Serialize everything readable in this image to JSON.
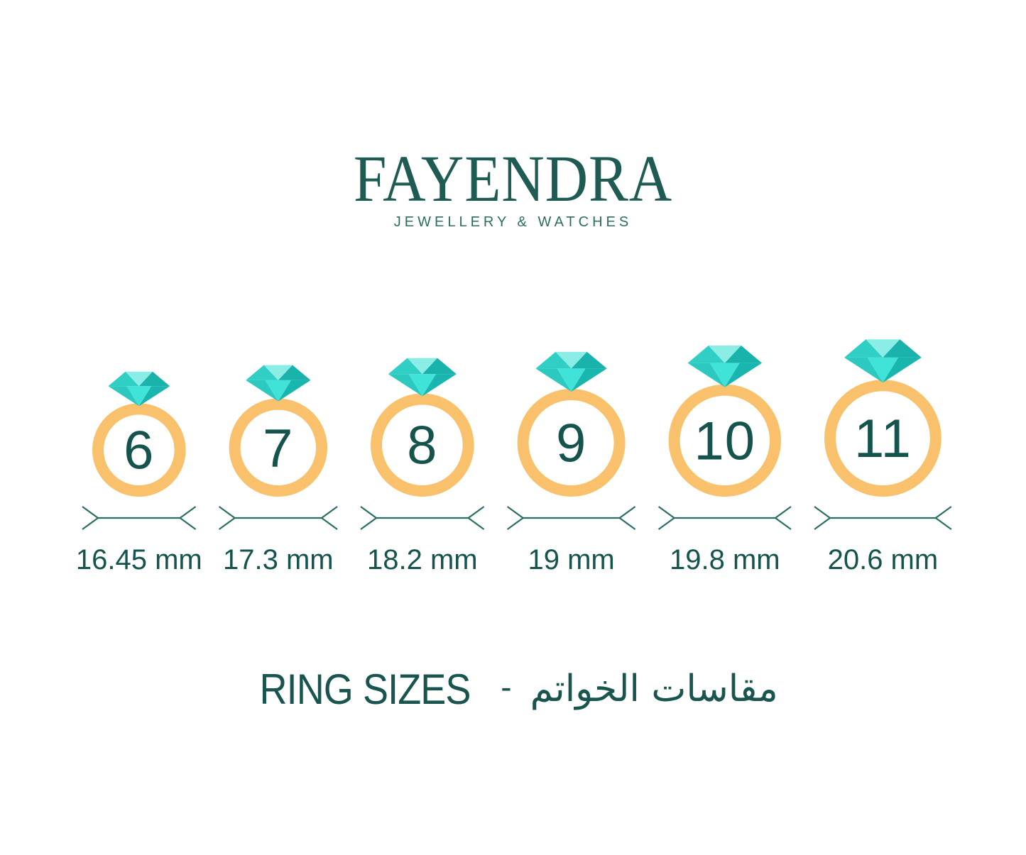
{
  "brand": {
    "name": "FAYENDRA",
    "tagline": "JEWELLERY & WATCHES"
  },
  "title": {
    "en": "RING SIZES",
    "separator": "-",
    "ar": "مقاسات الخواتم"
  },
  "rings": [
    {
      "size": "6",
      "diameter_mm": 16.45,
      "diameter_label": "16.45 mm"
    },
    {
      "size": "7",
      "diameter_mm": 17.3,
      "diameter_label": "17.3 mm"
    },
    {
      "size": "8",
      "diameter_mm": 18.2,
      "diameter_label": "18.2 mm"
    },
    {
      "size": "9",
      "diameter_mm": 19.0,
      "diameter_label": "19 mm"
    },
    {
      "size": "10",
      "diameter_mm": 19.8,
      "diameter_label": "19.8 mm"
    },
    {
      "size": "11",
      "diameter_mm": 20.6,
      "diameter_label": "20.6 mm"
    }
  ],
  "colors": {
    "background": "#FFFFFF",
    "logo_green": "#1E5B52",
    "tagline_green": "#2F6D62",
    "text_teal": "#15534D",
    "arrow_teal": "#2B6E67",
    "band_orange": "#F9C16B",
    "diamond": {
      "crown_left": "#2FCFC6",
      "crown_mid_light": "#8AEEE6",
      "crown_right": "#19B3AC",
      "pavilion_left": "#2BC9C0",
      "pavilion_mid_bright": "#3FE3D8",
      "pavilion_right": "#18B6AF"
    }
  },
  "chart_data": {
    "type": "table",
    "title": "RING SIZES - مقاسات الخواتم",
    "categories": [
      "6",
      "7",
      "8",
      "9",
      "10",
      "11"
    ],
    "values_mm": [
      16.45,
      17.3,
      18.2,
      19.0,
      19.8,
      20.6
    ],
    "unit": "mm"
  }
}
